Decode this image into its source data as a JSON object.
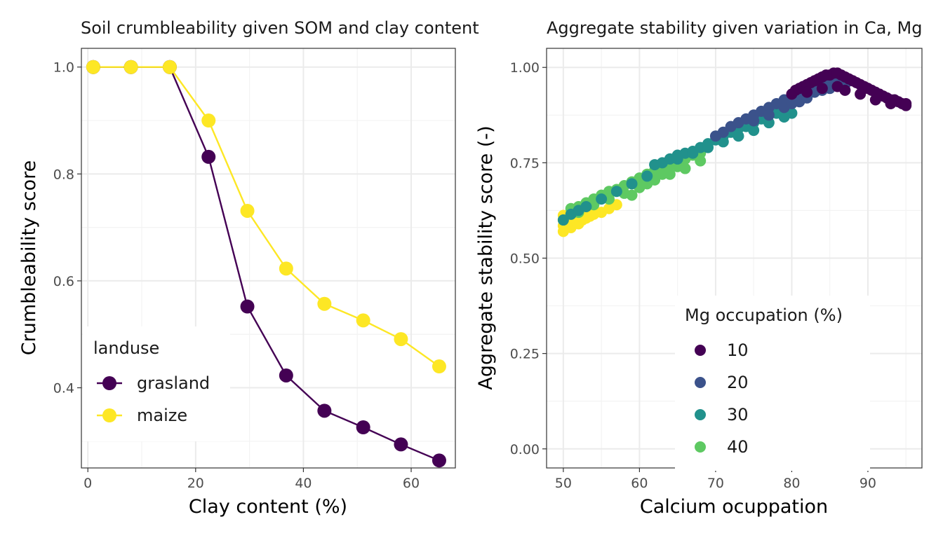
{
  "chart_data": [
    {
      "type": "line",
      "title": "Soil crumbleability given SOM and clay content",
      "xlabel": "Clay content (%)",
      "ylabel": "Crumbleability score",
      "xlim": [
        -1.2,
        68.2
      ],
      "ylim": [
        0.25,
        1.035
      ],
      "x_ticks": [
        0,
        20,
        40,
        60
      ],
      "y_ticks": [
        0.4,
        0.6,
        0.8,
        1.0
      ],
      "x_tick_labels": [
        "0",
        "20",
        "40",
        "60"
      ],
      "y_tick_labels": [
        "0.4",
        "0.6",
        "0.8",
        "1.0"
      ],
      "grid": true,
      "legend": {
        "title": "landuse",
        "position": "bottom-left"
      },
      "x": [
        1,
        8,
        15.2,
        22.4,
        29.6,
        36.8,
        43.9,
        51.1,
        58.1,
        65.2
      ],
      "series": [
        {
          "name": "grasland",
          "color": "#440154",
          "values": [
            1.0,
            1.0,
            1.0,
            0.832,
            0.552,
            0.423,
            0.357,
            0.326,
            0.294,
            0.264
          ]
        },
        {
          "name": "maize",
          "color": "#fde725",
          "values": [
            1.0,
            1.0,
            1.0,
            0.9,
            0.731,
            0.623,
            0.557,
            0.526,
            0.491,
            0.44
          ]
        }
      ]
    },
    {
      "type": "scatter",
      "title": "Aggregate stability given variation in Ca, Mg",
      "xlabel": "Calcium ocuppation",
      "ylabel": "Aggregate stability score (-)",
      "xlim": [
        47.8,
        97.1
      ],
      "ylim": [
        -0.05,
        1.05
      ],
      "x_ticks": [
        50,
        60,
        70,
        80,
        90
      ],
      "y_ticks": [
        0,
        0.25,
        0.5,
        0.75,
        1.0
      ],
      "x_tick_labels": [
        "50",
        "60",
        "70",
        "80",
        "90"
      ],
      "y_tick_labels": [
        "0.00",
        "0.25",
        "0.50",
        "0.75",
        "1.00"
      ],
      "grid": true,
      "legend": {
        "title": "Mg occupation (%)",
        "position": "bottom-right"
      },
      "series": [
        {
          "name": "10",
          "color": "#440154",
          "points": [
            [
              80,
              0.93
            ],
            [
              80.5,
              0.94
            ],
            [
              81,
              0.945
            ],
            [
              81.5,
              0.95
            ],
            [
              82,
              0.955
            ],
            [
              82.5,
              0.96
            ],
            [
              83,
              0.965
            ],
            [
              83.5,
              0.97
            ],
            [
              84,
              0.975
            ],
            [
              84.5,
              0.98
            ],
            [
              85,
              0.98
            ],
            [
              85.5,
              0.985
            ],
            [
              86,
              0.985
            ],
            [
              86.5,
              0.98
            ],
            [
              87,
              0.975
            ],
            [
              87.5,
              0.97
            ],
            [
              88,
              0.965
            ],
            [
              88.5,
              0.96
            ],
            [
              89,
              0.955
            ],
            [
              89.5,
              0.95
            ],
            [
              90,
              0.945
            ],
            [
              90.5,
              0.94
            ],
            [
              91,
              0.935
            ],
            [
              91.5,
              0.93
            ],
            [
              92,
              0.925
            ],
            [
              92.5,
              0.92
            ],
            [
              93,
              0.915
            ],
            [
              93.5,
              0.915
            ],
            [
              94,
              0.91
            ],
            [
              94.5,
              0.905
            ],
            [
              95,
              0.905
            ],
            [
              82,
              0.935
            ],
            [
              84,
              0.945
            ],
            [
              86,
              0.95
            ],
            [
              87,
              0.94
            ],
            [
              89,
              0.93
            ],
            [
              91,
              0.915
            ],
            [
              93,
              0.905
            ],
            [
              95,
              0.9
            ]
          ]
        },
        {
          "name": "20",
          "color": "#3b528b",
          "points": [
            [
              70,
              0.82
            ],
            [
              71,
              0.83
            ],
            [
              72,
              0.845
            ],
            [
              73,
              0.855
            ],
            [
              74,
              0.865
            ],
            [
              75,
              0.875
            ],
            [
              76,
              0.885
            ],
            [
              77,
              0.895
            ],
            [
              78,
              0.905
            ],
            [
              79,
              0.915
            ],
            [
              80,
              0.925
            ],
            [
              81,
              0.935
            ],
            [
              82,
              0.945
            ],
            [
              83,
              0.95
            ],
            [
              84,
              0.955
            ],
            [
              85,
              0.96
            ],
            [
              86,
              0.965
            ],
            [
              75,
              0.86
            ],
            [
              77,
              0.875
            ],
            [
              79,
              0.895
            ],
            [
              81,
              0.91
            ],
            [
              83,
              0.935
            ],
            [
              85,
              0.945
            ],
            [
              87,
              0.955
            ],
            [
              80,
              0.905
            ],
            [
              82,
              0.92
            ],
            [
              84,
              0.94
            ]
          ]
        },
        {
          "name": "30",
          "color": "#21918c",
          "points": [
            [
              50,
              0.6
            ],
            [
              51,
              0.615
            ],
            [
              52,
              0.625
            ],
            [
              53,
              0.635
            ],
            [
              55,
              0.655
            ],
            [
              57,
              0.675
            ],
            [
              59,
              0.695
            ],
            [
              61,
              0.715
            ],
            [
              62,
              0.745
            ],
            [
              63,
              0.75
            ],
            [
              64,
              0.76
            ],
            [
              65,
              0.77
            ],
            [
              66,
              0.775
            ],
            [
              67,
              0.78
            ],
            [
              68,
              0.79
            ],
            [
              69,
              0.8
            ],
            [
              70,
              0.81
            ],
            [
              71,
              0.82
            ],
            [
              72,
              0.83
            ],
            [
              73,
              0.84
            ],
            [
              74,
              0.845
            ],
            [
              75,
              0.855
            ],
            [
              76,
              0.865
            ],
            [
              77,
              0.875
            ],
            [
              78,
              0.88
            ],
            [
              79,
              0.89
            ],
            [
              65,
              0.76
            ],
            [
              67,
              0.775
            ],
            [
              69,
              0.79
            ],
            [
              71,
              0.805
            ],
            [
              73,
              0.82
            ],
            [
              75,
              0.835
            ],
            [
              77,
              0.855
            ],
            [
              79,
              0.87
            ],
            [
              80,
              0.88
            ]
          ]
        },
        {
          "name": "40",
          "color": "#5ec962",
          "points": [
            [
              51,
              0.63
            ],
            [
              52,
              0.635
            ],
            [
              53,
              0.645
            ],
            [
              54,
              0.655
            ],
            [
              55,
              0.665
            ],
            [
              56,
              0.675
            ],
            [
              57,
              0.68
            ],
            [
              58,
              0.69
            ],
            [
              59,
              0.7
            ],
            [
              60,
              0.71
            ],
            [
              61,
              0.72
            ],
            [
              62,
              0.73
            ],
            [
              63,
              0.74
            ],
            [
              64,
              0.745
            ],
            [
              65,
              0.755
            ],
            [
              66,
              0.76
            ],
            [
              67,
              0.77
            ],
            [
              68,
              0.775
            ],
            [
              52,
              0.62
            ],
            [
              54,
              0.64
            ],
            [
              56,
              0.655
            ],
            [
              58,
              0.67
            ],
            [
              60,
              0.685
            ],
            [
              62,
              0.705
            ],
            [
              64,
              0.72
            ],
            [
              66,
              0.735
            ],
            [
              68,
              0.755
            ],
            [
              59,
              0.665
            ],
            [
              61,
              0.695
            ],
            [
              63,
              0.72
            ],
            [
              65,
              0.74
            ]
          ]
        },
        {
          "name": "",
          "color": "#fde725",
          "points": [
            [
              50,
              0.57
            ],
            [
              50,
              0.585
            ],
            [
              50,
              0.6
            ],
            [
              50,
              0.612
            ],
            [
              50.5,
              0.59
            ],
            [
              51,
              0.58
            ],
            [
              51,
              0.6
            ],
            [
              51.5,
              0.595
            ],
            [
              52,
              0.59
            ],
            [
              52.5,
              0.6
            ],
            [
              53,
              0.605
            ],
            [
              53.5,
              0.61
            ],
            [
              54,
              0.615
            ],
            [
              55,
              0.62
            ],
            [
              56,
              0.63
            ],
            [
              57,
              0.64
            ],
            [
              51,
              0.605
            ],
            [
              52,
              0.61
            ],
            [
              53,
              0.62
            ],
            [
              54,
              0.625
            ]
          ]
        }
      ]
    }
  ]
}
